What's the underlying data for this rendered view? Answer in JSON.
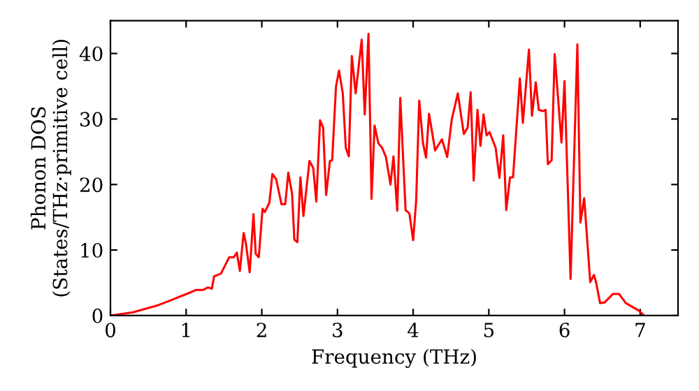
{
  "chart_data": {
    "type": "line",
    "xlabel": "Frequency (THz)",
    "ylabel": "Phonon DOS\n(States/THz·primitive cell)",
    "x": [
      0,
      0.3,
      0.61,
      0.79,
      1.03,
      1.13,
      1.22,
      1.29,
      1.34,
      1.37,
      1.46,
      1.57,
      1.63,
      1.67,
      1.71,
      1.76,
      1.79,
      1.84,
      1.89,
      1.92,
      1.96,
      2.01,
      2.04,
      2.1,
      2.14,
      2.19,
      2.26,
      2.31,
      2.35,
      2.4,
      2.43,
      2.47,
      2.51,
      2.55,
      2.63,
      2.68,
      2.72,
      2.77,
      2.81,
      2.85,
      2.9,
      2.93,
      2.98,
      3.02,
      3.07,
      3.11,
      3.15,
      3.19,
      3.24,
      3.32,
      3.36,
      3.41,
      3.45,
      3.49,
      3.54,
      3.59,
      3.64,
      3.7,
      3.74,
      3.79,
      3.83,
      3.9,
      3.95,
      4.0,
      4.04,
      4.08,
      4.13,
      4.17,
      4.21,
      4.29,
      4.38,
      4.45,
      4.51,
      4.59,
      4.67,
      4.72,
      4.76,
      4.8,
      4.85,
      4.89,
      4.93,
      4.97,
      5.01,
      5.09,
      5.14,
      5.19,
      5.23,
      5.28,
      5.32,
      5.41,
      5.45,
      5.53,
      5.57,
      5.62,
      5.66,
      5.71,
      5.75,
      5.78,
      5.83,
      5.87,
      5.96,
      6.0,
      6.08,
      6.17,
      6.21,
      6.26,
      6.34,
      6.39,
      6.42,
      6.47,
      6.53,
      6.64,
      6.72,
      6.81,
      6.99,
      7.05
    ],
    "series": [
      {
        "color": "#ff0000",
        "values": [
          0,
          0.5,
          1.5,
          2.3,
          3.4,
          3.9,
          3.9,
          4.3,
          4.1,
          6.0,
          6.4,
          8.9,
          8.9,
          9.6,
          6.8,
          12.6,
          11.0,
          6.6,
          15.5,
          9.4,
          8.9,
          16.3,
          15.8,
          17.2,
          21.6,
          20.8,
          17.0,
          17.0,
          21.8,
          18.6,
          11.6,
          11.2,
          21.1,
          15.2,
          23.6,
          22.5,
          17.4,
          29.8,
          28.7,
          18.4,
          23.6,
          23.7,
          34.9,
          37.4,
          33.9,
          25.6,
          24.3,
          39.6,
          33.9,
          42.1,
          30.7,
          43.0,
          17.8,
          29.0,
          26.3,
          25.6,
          24.2,
          20.0,
          24.3,
          16.0,
          33.2,
          16.1,
          15.6,
          11.5,
          17.6,
          32.8,
          26.3,
          24.1,
          30.8,
          25.2,
          26.9,
          24.2,
          29.9,
          33.9,
          27.7,
          28.7,
          34.1,
          20.6,
          31.4,
          25.9,
          30.7,
          27.5,
          28.0,
          25.6,
          21.0,
          27.5,
          16.1,
          21.1,
          21.1,
          36.2,
          29.4,
          40.6,
          30.5,
          35.6,
          31.4,
          31.2,
          31.4,
          23.1,
          23.7,
          39.9,
          26.4,
          35.8,
          5.6,
          41.4,
          14.2,
          17.9,
          5.1,
          6.2,
          4.9,
          1.9,
          2.0,
          3.3,
          3.3,
          1.9,
          0.7,
          0
        ]
      }
    ],
    "xlim": [
      0,
      7.5
    ],
    "xticks": [
      0,
      1,
      2,
      3,
      4,
      5,
      6,
      7
    ],
    "ylim": [
      0,
      45
    ],
    "yticks": [
      0,
      10,
      20,
      30,
      40
    ],
    "grid": false,
    "legend": false,
    "marker": "none",
    "line_style": "solid"
  }
}
